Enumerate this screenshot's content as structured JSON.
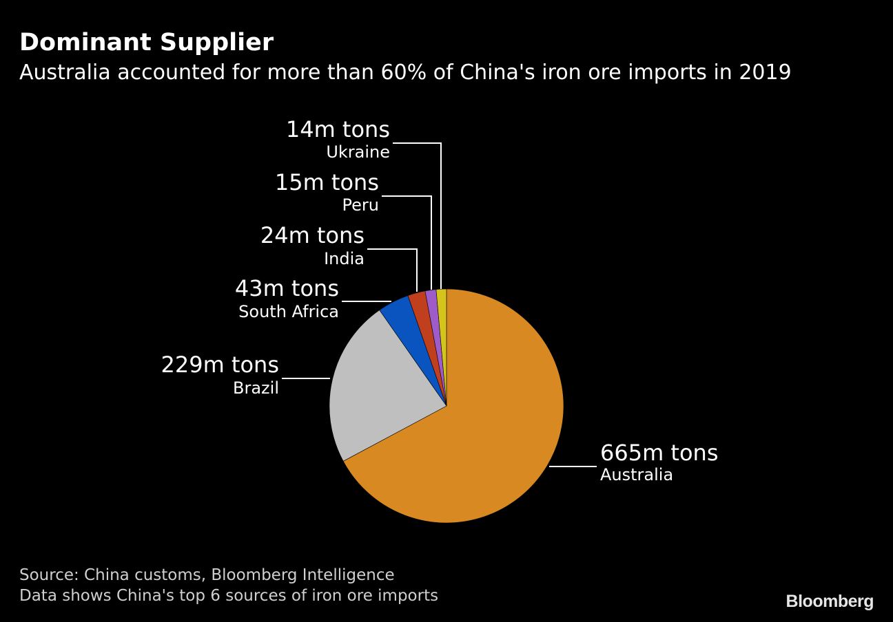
{
  "header": {
    "title": "Dominant Supplier",
    "subtitle": "Australia accounted for more than 60% of China's iron ore imports in 2019"
  },
  "chart_data": {
    "type": "pie",
    "unit": "m tons",
    "slices": [
      {
        "label": "Australia",
        "value": 665,
        "value_label": "665m tons",
        "color": "#d98922"
      },
      {
        "label": "Brazil",
        "value": 229,
        "value_label": "229m tons",
        "color": "#bfbfbf"
      },
      {
        "label": "South Africa",
        "value": 43,
        "value_label": "43m tons",
        "color": "#0a54c0"
      },
      {
        "label": "India",
        "value": 24,
        "value_label": "24m tons",
        "color": "#c0401d"
      },
      {
        "label": "Peru",
        "value": 15,
        "value_label": "15m tons",
        "color": "#9d5cc8"
      },
      {
        "label": "Ukraine",
        "value": 14,
        "value_label": "14m tons",
        "color": "#d4c41c"
      }
    ]
  },
  "footer": {
    "source": "Source: China customs, Bloomberg Intelligence",
    "note": "Data shows China's top 6 sources of iron ore imports",
    "brand": "Bloomberg"
  }
}
